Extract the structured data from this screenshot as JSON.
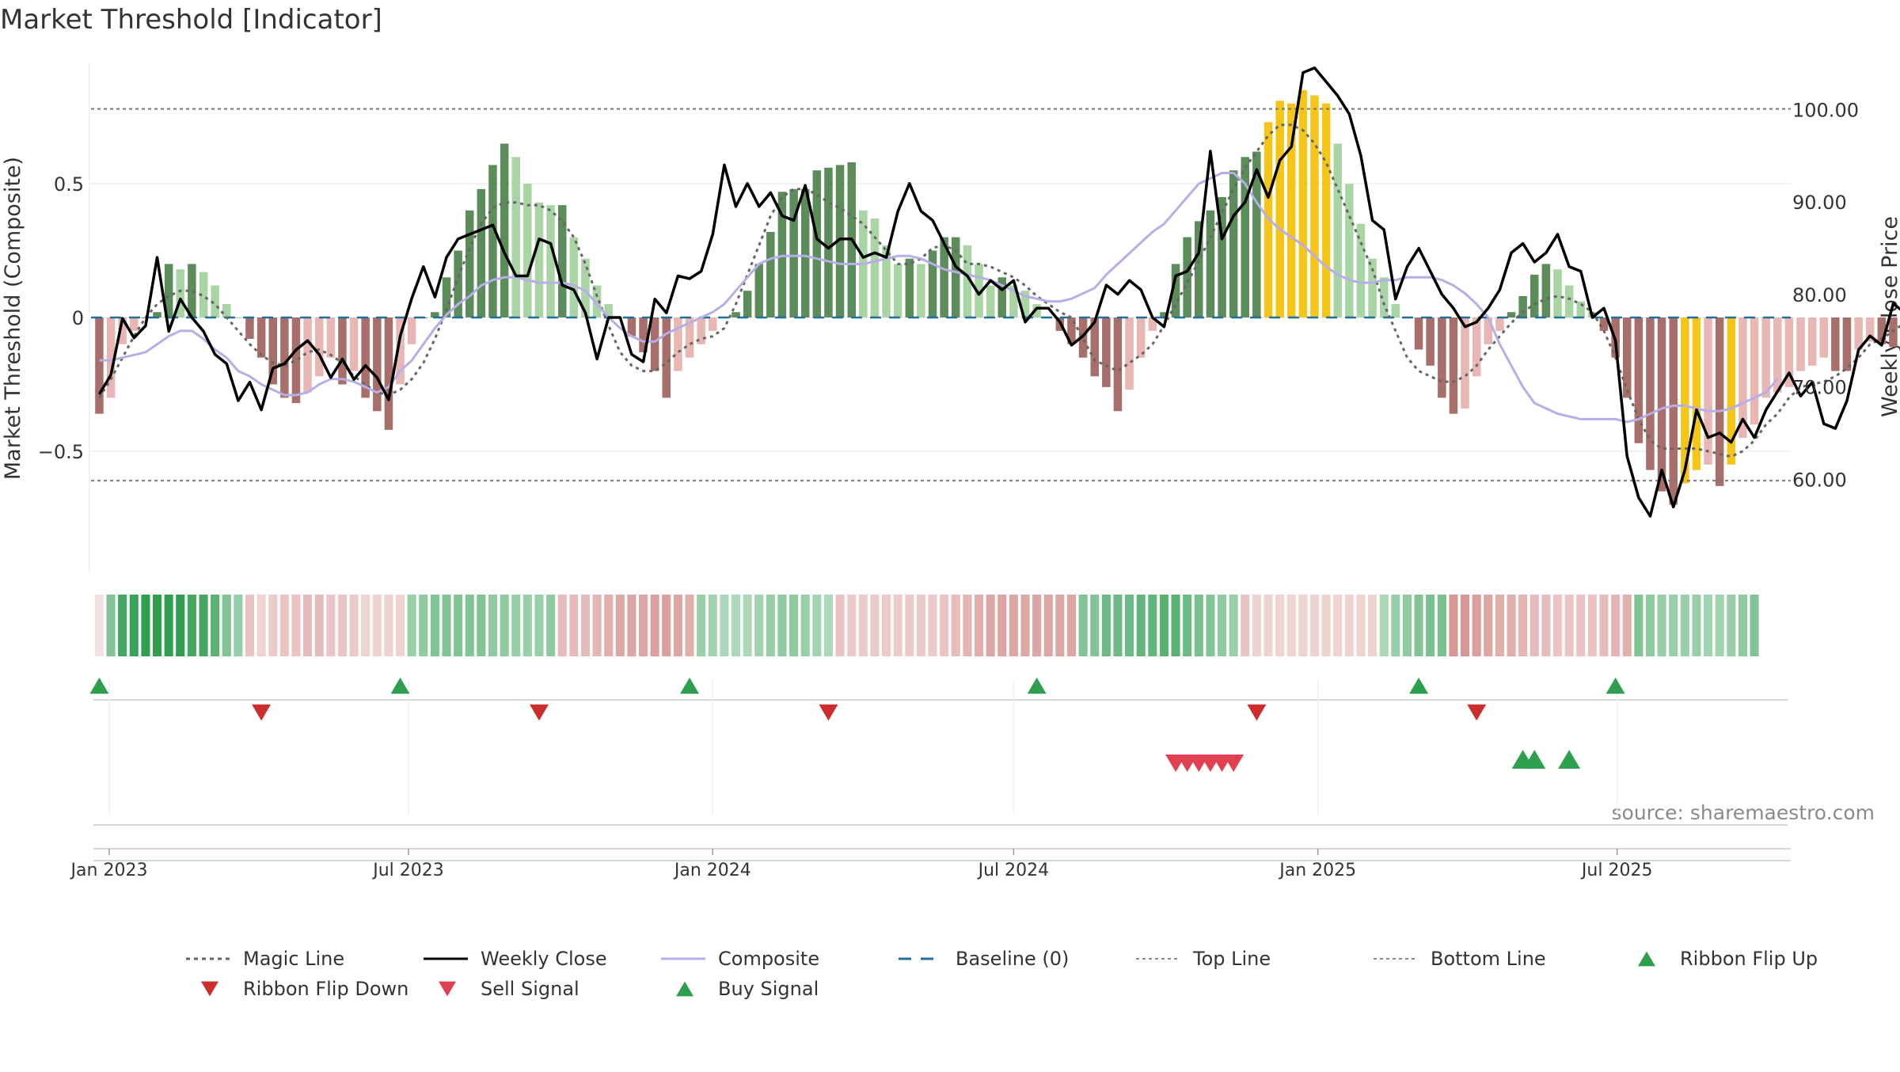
{
  "chart_data": {
    "type": "bar",
    "title": "Market Threshold [Indicator]",
    "ylabel_left": "Market Threshold (Composite)",
    "ylabel_right": "Weekly Close Price",
    "source": "source: sharemaestro.com",
    "ylim_left": [
      -0.95,
      0.95
    ],
    "ylim_right": [
      50,
      105
    ],
    "yticks_left": [
      {
        "v": 0.5,
        "t": "0.5"
      },
      {
        "v": 0,
        "t": "0"
      },
      {
        "v": -0.5,
        "t": "−0.5"
      }
    ],
    "yticks_right": [
      {
        "v": 100,
        "t": "100.00"
      },
      {
        "v": 90,
        "t": "90.00"
      },
      {
        "v": 80,
        "t": "80.00"
      },
      {
        "v": 70,
        "t": "70.00"
      },
      {
        "v": 60,
        "t": "60.00"
      }
    ],
    "x_ticks": [
      {
        "date": "2023-01-01",
        "label": "Jan 2023"
      },
      {
        "date": "2023-07-01",
        "label": "Jul 2023"
      },
      {
        "date": "2024-01-01",
        "label": "Jan 2024"
      },
      {
        "date": "2024-07-01",
        "label": "Jul 2024"
      },
      {
        "date": "2025-01-01",
        "label": "Jan 2025"
      },
      {
        "date": "2025-07-01",
        "label": "Jul 2025"
      }
    ],
    "x_range": [
      "2022-12-21",
      "2025-10-14"
    ],
    "top_line": 0.78,
    "bottom_line": -0.61,
    "baseline": 0,
    "grid": "horizontal",
    "legend_position": "bottom",
    "legend": [
      {
        "label": "Magic Line",
        "kind": "dotted",
        "color": "#666666"
      },
      {
        "label": "Weekly Close",
        "kind": "solid",
        "color": "#000000"
      },
      {
        "label": "Composite",
        "kind": "solid",
        "color": "#b6aee6"
      },
      {
        "label": "Baseline (0)",
        "kind": "dashed",
        "color": "#1f6e9c"
      },
      {
        "label": "Top Line",
        "kind": "dotted-fine",
        "color": "#888888"
      },
      {
        "label": "Bottom Line",
        "kind": "dotted-fine",
        "color": "#888888"
      },
      {
        "label": "Ribbon Flip Up",
        "kind": "tri-up",
        "color": "#2e9e4f"
      },
      {
        "label": "Ribbon Flip Down",
        "kind": "tri-down",
        "color": "#cc2e2e"
      },
      {
        "label": "Sell Signal",
        "kind": "tri-down",
        "color": "#e0404f"
      },
      {
        "label": "Buy Signal",
        "kind": "tri-up",
        "color": "#2e9e4f"
      }
    ],
    "colors": {
      "pos_strong": "#5b8c5a",
      "pos_weak": "#a9d4a3",
      "neg_strong": "#a86e6a",
      "neg_weak": "#e8b7b4",
      "extreme": "#f5c518",
      "close": "#000000",
      "composite": "#b6aee6",
      "magic": "#666666",
      "baseline": "#1f6e9c",
      "buy": "#2e9e4f",
      "sell": "#cc2e2e",
      "sell_signal": "#e0404f"
    },
    "series": {
      "composite_bars": [
        -0.36,
        -0.3,
        -0.1,
        -0.05,
        0,
        0.02,
        0.2,
        0.18,
        0.2,
        0.17,
        0.12,
        0.05,
        0,
        -0.08,
        -0.15,
        -0.25,
        -0.3,
        -0.32,
        -0.28,
        -0.22,
        -0.15,
        -0.25,
        -0.2,
        -0.3,
        -0.35,
        -0.42,
        -0.25,
        -0.1,
        0,
        0.02,
        0.15,
        0.25,
        0.4,
        0.48,
        0.57,
        0.65,
        0.6,
        0.5,
        0.43,
        0.42,
        0.42,
        0.3,
        0.22,
        0.12,
        0.05,
        0,
        -0.07,
        -0.13,
        -0.2,
        -0.3,
        -0.2,
        -0.15,
        -0.1,
        -0.05,
        0,
        0.02,
        0.1,
        0.2,
        0.32,
        0.47,
        0.48,
        0.48,
        0.55,
        0.56,
        0.57,
        0.58,
        0.4,
        0.37,
        0.27,
        0.2,
        0.22,
        0.2,
        0.25,
        0.3,
        0.3,
        0.27,
        0.2,
        0.12,
        0.15,
        0.12,
        0.1,
        0.05,
        0,
        -0.05,
        -0.1,
        -0.15,
        -0.22,
        -0.26,
        -0.35,
        -0.27,
        -0.15,
        -0.05,
        0.02,
        0.2,
        0.3,
        0.36,
        0.4,
        0.45,
        0.55,
        0.6,
        0.62,
        0.73,
        0.81,
        0.8,
        0.85,
        0.83,
        0.8,
        0.65,
        0.5,
        0.35,
        0.22,
        0.15,
        0.05,
        0,
        -0.12,
        -0.18,
        -0.3,
        -0.36,
        -0.34,
        -0.22,
        -0.1,
        -0.05,
        0.02,
        0.08,
        0.16,
        0.2,
        0.18,
        0.12,
        0.06,
        0.02,
        -0.05,
        -0.15,
        -0.3,
        -0.47,
        -0.57,
        -0.65,
        -0.7,
        -0.62,
        -0.57,
        -0.55,
        -0.63,
        -0.55,
        -0.45,
        -0.4,
        -0.3,
        -0.28,
        -0.26,
        -0.2,
        -0.18,
        -0.15,
        -0.2,
        -0.2,
        -0.12,
        -0.09,
        -0.1,
        -0.11,
        -0.03,
        0.06
      ],
      "weekly_close": [
        69.2,
        71.3,
        77.4,
        75.3,
        76.6,
        84,
        76,
        79.5,
        77.5,
        76,
        73.5,
        72.5,
        68.5,
        70.5,
        67.5,
        72,
        72.5,
        74,
        75,
        73.5,
        71,
        73,
        70.8,
        72.3,
        71,
        68.6,
        75.5,
        79.6,
        83,
        79.7,
        84,
        86,
        86.5,
        87,
        87.5,
        84.5,
        82,
        82,
        86,
        85.5,
        81,
        80.5,
        78,
        73,
        77.5,
        77.5,
        73.5,
        72.7,
        79.5,
        78,
        82,
        81.7,
        82.5,
        86.5,
        94,
        89.5,
        92,
        89.5,
        91,
        88.5,
        88,
        91.8,
        86,
        85,
        86,
        86,
        84,
        84.5,
        84,
        89,
        92,
        89,
        88,
        85.5,
        83,
        82,
        80,
        81.5,
        80.5,
        81.5,
        77,
        78.5,
        78.5,
        77,
        74.5,
        75.5,
        77,
        81,
        80,
        81.5,
        80.5,
        77.5,
        76.5,
        82,
        82.5,
        84.5,
        95.5,
        86,
        88.5,
        90,
        93.5,
        90.5,
        94.5,
        96,
        104,
        104.5,
        103,
        101.5,
        99.5,
        95,
        88,
        87,
        79.5,
        83,
        85,
        82.5,
        80,
        78.5,
        76.5,
        77,
        78.5,
        80.5,
        84.5,
        85.5,
        83.5,
        84.5,
        86.5,
        83,
        82.5,
        77.5,
        78.5,
        75,
        62.5,
        58,
        56,
        61,
        57,
        61,
        67.5,
        64.5,
        65,
        64,
        66.5,
        64.5,
        67.5,
        69.5,
        71.5,
        69,
        70.5,
        66,
        65.5,
        68.5,
        74,
        75.5,
        74.5,
        79,
        78,
        77
      ],
      "composite_line": [
        -0.16,
        -0.16,
        -0.15,
        -0.14,
        -0.13,
        -0.1,
        -0.07,
        -0.05,
        -0.05,
        -0.08,
        -0.12,
        -0.15,
        -0.2,
        -0.22,
        -0.25,
        -0.27,
        -0.29,
        -0.29,
        -0.28,
        -0.25,
        -0.23,
        -0.23,
        -0.24,
        -0.26,
        -0.28,
        -0.26,
        -0.2,
        -0.16,
        -0.1,
        -0.04,
        0.01,
        0.05,
        0.08,
        0.12,
        0.14,
        0.15,
        0.15,
        0.14,
        0.13,
        0.13,
        0.13,
        0.12,
        0.1,
        0.05,
        0,
        -0.04,
        -0.07,
        -0.09,
        -0.09,
        -0.06,
        -0.04,
        -0.02,
        0,
        0.02,
        0.05,
        0.1,
        0.15,
        0.2,
        0.22,
        0.23,
        0.23,
        0.23,
        0.22,
        0.21,
        0.2,
        0.2,
        0.2,
        0.21,
        0.22,
        0.23,
        0.23,
        0.22,
        0.2,
        0.18,
        0.17,
        0.16,
        0.15,
        0.14,
        0.12,
        0.1,
        0.08,
        0.07,
        0.06,
        0.06,
        0.07,
        0.09,
        0.11,
        0.16,
        0.2,
        0.24,
        0.28,
        0.32,
        0.35,
        0.4,
        0.45,
        0.5,
        0.52,
        0.54,
        0.54,
        0.5,
        0.43,
        0.37,
        0.33,
        0.3,
        0.27,
        0.23,
        0.19,
        0.16,
        0.14,
        0.13,
        0.13,
        0.14,
        0.14,
        0.15,
        0.15,
        0.15,
        0.14,
        0.12,
        0.09,
        0.05,
        0,
        -0.1,
        -0.18,
        -0.26,
        -0.32,
        -0.34,
        -0.36,
        -0.37,
        -0.38,
        -0.38,
        -0.38,
        -0.38,
        -0.39,
        -0.38,
        -0.36,
        -0.34,
        -0.33,
        -0.33,
        -0.34,
        -0.35,
        -0.35,
        -0.34,
        -0.32,
        -0.3,
        -0.28,
        -0.23
      ],
      "magic_line": [
        -0.3,
        -0.23,
        -0.15,
        -0.07,
        0,
        0.05,
        0.08,
        0.1,
        0.1,
        0.08,
        0.05,
        0,
        -0.05,
        -0.1,
        -0.14,
        -0.17,
        -0.18,
        -0.16,
        -0.13,
        -0.12,
        -0.14,
        -0.17,
        -0.22,
        -0.25,
        -0.28,
        -0.29,
        -0.27,
        -0.23,
        -0.17,
        -0.08,
        0.03,
        0.15,
        0.26,
        0.35,
        0.41,
        0.43,
        0.43,
        0.42,
        0.42,
        0.4,
        0.36,
        0.3,
        0.2,
        0.08,
        -0.03,
        -0.13,
        -0.18,
        -0.2,
        -0.2,
        -0.17,
        -0.13,
        -0.1,
        -0.08,
        -0.07,
        -0.04,
        0.05,
        0.16,
        0.27,
        0.38,
        0.45,
        0.48,
        0.48,
        0.46,
        0.43,
        0.41,
        0.38,
        0.35,
        0.3,
        0.25,
        0.2,
        0.2,
        0.22,
        0.26,
        0.27,
        0.25,
        0.2,
        0.2,
        0.19,
        0.17,
        0.15,
        0.12,
        0.08,
        0.05,
        0.02,
        0,
        -0.08,
        -0.16,
        -0.18,
        -0.2,
        -0.17,
        -0.14,
        -0.1,
        -0.03,
        0.05,
        0.13,
        0.21,
        0.3,
        0.39,
        0.48,
        0.56,
        0.62,
        0.68,
        0.72,
        0.72,
        0.7,
        0.65,
        0.58,
        0.48,
        0.38,
        0.28,
        0.18,
        0.05,
        -0.05,
        -0.15,
        -0.2,
        -0.22,
        -0.24,
        -0.24,
        -0.22,
        -0.18,
        -0.12,
        -0.07,
        -0.02,
        0.02,
        0.05,
        0.07,
        0.08,
        0.07,
        0.05,
        0.02,
        -0.05,
        -0.15,
        -0.27,
        -0.38,
        -0.46,
        -0.49,
        -0.49,
        -0.49,
        -0.49,
        -0.5,
        -0.51,
        -0.52,
        -0.5,
        -0.46,
        -0.4,
        -0.36,
        -0.3,
        -0.26,
        -0.25,
        -0.24,
        -0.22,
        -0.19,
        -0.15,
        -0.1,
        -0.08,
        -0.05,
        -0.02
      ],
      "ribbon_shades": [
        0.2,
        0.6,
        0.9,
        0.95,
        1,
        1,
        1,
        1,
        0.9,
        0.9,
        0.8,
        0.6,
        0.5,
        0.4,
        0.3,
        0.35,
        0.4,
        0.4,
        0.45,
        0.45,
        0.4,
        0.4,
        0.35,
        0.3,
        0.3,
        0.3,
        0.3,
        0.5,
        0.55,
        0.6,
        0.6,
        0.6,
        0.6,
        0.6,
        0.55,
        0.55,
        0.5,
        0.5,
        0.5,
        0.55,
        0.45,
        0.45,
        0.45,
        0.5,
        0.55,
        0.6,
        0.6,
        0.6,
        0.65,
        0.65,
        0.6,
        0.55,
        0.5,
        0.45,
        0.4,
        0.4,
        0.4,
        0.45,
        0.5,
        0.55,
        0.55,
        0.5,
        0.45,
        0.4,
        0.4,
        0.35,
        0.35,
        0.35,
        0.35,
        0.35,
        0.35,
        0.35,
        0.35,
        0.4,
        0.45,
        0.5,
        0.55,
        0.6,
        0.6,
        0.6,
        0.6,
        0.6,
        0.6,
        0.6,
        0.6,
        0.6,
        0.6,
        0.7,
        0.7,
        0.7,
        0.75,
        0.75,
        0.8,
        0.8,
        0.7,
        0.65,
        0.6,
        0.55,
        0.5,
        0.4,
        0.3,
        0.3,
        0.3,
        0.3,
        0.3,
        0.3,
        0.3,
        0.3,
        0.3,
        0.3,
        0.3,
        0.4,
        0.5,
        0.55,
        0.6,
        0.65,
        0.65,
        0.7,
        0.7,
        0.65,
        0.6,
        0.55,
        0.55,
        0.5,
        0.45,
        0.45,
        0.4,
        0.4,
        0.4,
        0.4,
        0.45,
        0.5,
        0.55,
        0.6,
        0.55,
        0.5,
        0.5,
        0.5,
        0.5,
        0.45,
        0.45,
        0.5,
        0.55,
        0.6
      ],
      "ribbon_signs": [
        -1,
        1,
        1,
        1,
        1,
        1,
        1,
        1,
        1,
        1,
        1,
        1,
        1,
        -1,
        -1,
        -1,
        -1,
        -1,
        -1,
        -1,
        -1,
        -1,
        -1,
        -1,
        -1,
        -1,
        -1,
        1,
        1,
        1,
        1,
        1,
        1,
        1,
        1,
        1,
        1,
        1,
        1,
        1,
        -1,
        -1,
        -1,
        -1,
        -1,
        -1,
        -1,
        -1,
        -1,
        -1,
        -1,
        -1,
        1,
        1,
        1,
        1,
        1,
        1,
        1,
        1,
        1,
        1,
        1,
        1,
        -1,
        -1,
        -1,
        -1,
        -1,
        -1,
        -1,
        -1,
        -1,
        -1,
        -1,
        -1,
        -1,
        -1,
        -1,
        -1,
        -1,
        -1,
        -1,
        -1,
        -1,
        1,
        1,
        1,
        1,
        1,
        1,
        1,
        1,
        1,
        1,
        1,
        1,
        1,
        1,
        -1,
        -1,
        -1,
        -1,
        -1,
        -1,
        -1,
        -1,
        -1,
        -1,
        -1,
        -1,
        1,
        1,
        1,
        1,
        1,
        1,
        -1,
        -1,
        -1,
        -1,
        -1,
        -1,
        -1,
        -1,
        -1,
        -1,
        -1,
        -1,
        -1,
        -1,
        -1,
        -1,
        1,
        1,
        1,
        1,
        1,
        1,
        1,
        1,
        1,
        1,
        1,
        1,
        1,
        1,
        1,
        1,
        1
      ]
    },
    "ribbon_flip_up": [
      "2022-12-26",
      "2023-06-26",
      "2023-12-18",
      "2024-07-15",
      "2025-03-03",
      "2025-06-30"
    ],
    "ribbon_flip_down": [
      "2023-04-03",
      "2023-09-18",
      "2024-03-11",
      "2024-11-25",
      "2025-04-07"
    ],
    "sell_signals": [
      "2024-10-07",
      "2024-10-14",
      "2024-10-21",
      "2024-10-28",
      "2024-11-04",
      "2024-11-11"
    ],
    "buy_signals": [
      "2025-05-05",
      "2025-05-12",
      "2025-06-02"
    ]
  }
}
